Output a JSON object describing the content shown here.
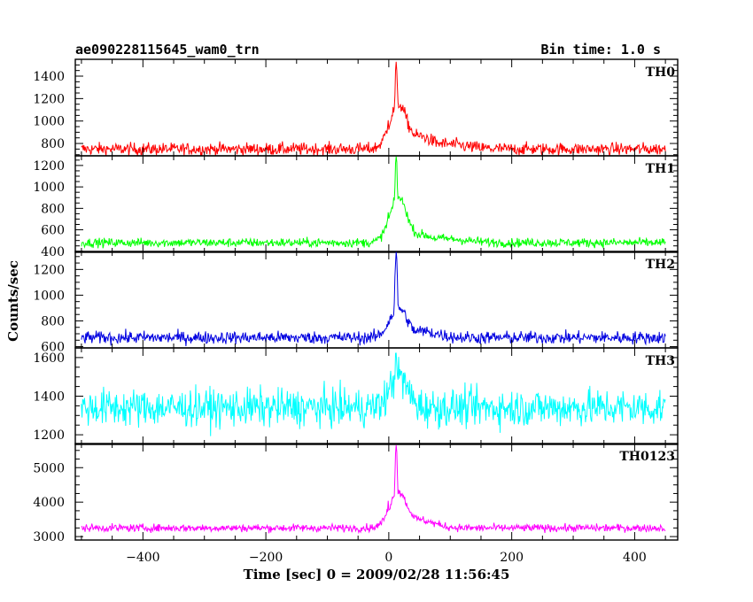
{
  "header": {
    "title": "ae090228115645_wam0_trn",
    "bin_time": "Bin time: 1.0 s"
  },
  "chart_data": {
    "type": "line",
    "title": "ae090228115645_wam0_trn",
    "subtitle": "Bin time: 1.0 s",
    "xlabel": "Time [sec] 0 = 2009/02/28 11:56:45",
    "ylabel": "Counts/sec",
    "xlim": [
      -510,
      470
    ],
    "x_ticks": [
      -400,
      -200,
      0,
      200,
      400
    ],
    "x_tick_labels": [
      "−400",
      "−200",
      "0",
      "200",
      "400"
    ],
    "x_range_data": [
      -500,
      450
    ],
    "grid": false,
    "panels": [
      {
        "name": "TH0",
        "color": "#ff0000",
        "ylim": [
          690,
          1550
        ],
        "y_ticks": [
          800,
          1000,
          1200,
          1400
        ],
        "baseline": 750,
        "noise": 40,
        "features": [
          {
            "x": -1,
            "value": 1050
          },
          {
            "x": 12,
            "value": 1500
          },
          {
            "x": 16,
            "value": 1150
          },
          {
            "x": 22,
            "value": 1000
          },
          {
            "x": 45,
            "value": 870
          },
          {
            "x": 80,
            "value": 800
          }
        ]
      },
      {
        "name": "TH1",
        "color": "#00ff00",
        "ylim": [
          390,
          1290
        ],
        "y_ticks": [
          400,
          600,
          800,
          1000,
          1200
        ],
        "baseline": 480,
        "noise": 30,
        "features": [
          {
            "x": -1,
            "value": 760
          },
          {
            "x": 12,
            "value": 1290
          },
          {
            "x": 16,
            "value": 900
          },
          {
            "x": 22,
            "value": 700
          },
          {
            "x": 45,
            "value": 560
          },
          {
            "x": 80,
            "value": 520
          }
        ]
      },
      {
        "name": "TH2",
        "color": "#0000e0",
        "ylim": [
          590,
          1340
        ],
        "y_ticks": [
          600,
          800,
          1000,
          1200
        ],
        "baseline": 670,
        "noise": 35,
        "features": [
          {
            "x": -1,
            "value": 820
          },
          {
            "x": 12,
            "value": 1330
          },
          {
            "x": 16,
            "value": 900
          },
          {
            "x": 22,
            "value": 780
          },
          {
            "x": 50,
            "value": 720
          }
        ]
      },
      {
        "name": "TH3",
        "color": "#00ffff",
        "ylim": [
          1150,
          1650
        ],
        "y_ticks": [
          1200,
          1400,
          1600
        ],
        "baseline": 1340,
        "noise": 70,
        "features": [
          {
            "x": 12,
            "value": 1650
          },
          {
            "x": 16,
            "value": 1500
          }
        ]
      },
      {
        "name": "TH0123",
        "color": "#ff00ff",
        "ylim": [
          2900,
          5700
        ],
        "y_ticks": [
          3000,
          4000,
          5000
        ],
        "baseline": 3250,
        "noise": 80,
        "features": [
          {
            "x": -1,
            "value": 4100
          },
          {
            "x": 12,
            "value": 5700
          },
          {
            "x": 16,
            "value": 4300
          },
          {
            "x": 22,
            "value": 3900
          },
          {
            "x": 45,
            "value": 3500
          },
          {
            "x": 100,
            "value": 3200
          }
        ]
      }
    ]
  }
}
